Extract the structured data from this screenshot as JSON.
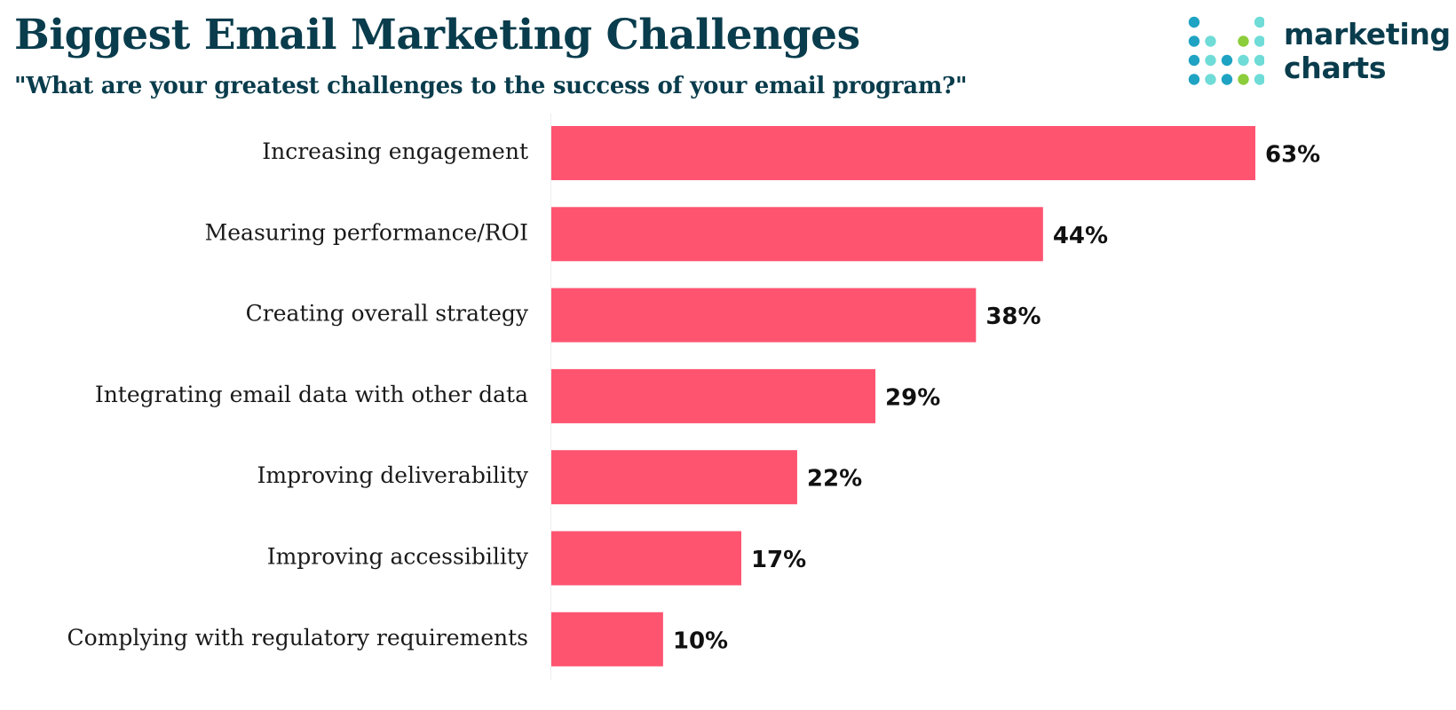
{
  "header": {
    "title": "Biggest Email Marketing Challenges",
    "subtitle": "\"What are your greatest challenges to the success of your email program?\""
  },
  "logo": {
    "line1": "marketing",
    "line2": "charts",
    "colors": {
      "dark": "#1fa3c3",
      "light": "#6fdcd8",
      "green": "#8ccd3b",
      "text": "#093c4c"
    }
  },
  "chart_data": {
    "type": "bar",
    "orientation": "horizontal",
    "categories": [
      "Increasing engagement",
      "Measuring performance/ROI",
      "Creating overall strategy",
      "Integrating email data with other data",
      "Improving deliverability",
      "Improving accessibility",
      "Complying with regulatory requirements"
    ],
    "values": [
      63,
      44,
      38,
      29,
      22,
      17,
      10
    ],
    "value_suffix": "%",
    "xlim": [
      0,
      70
    ],
    "grid": false,
    "bar_color": "#fe5470"
  }
}
